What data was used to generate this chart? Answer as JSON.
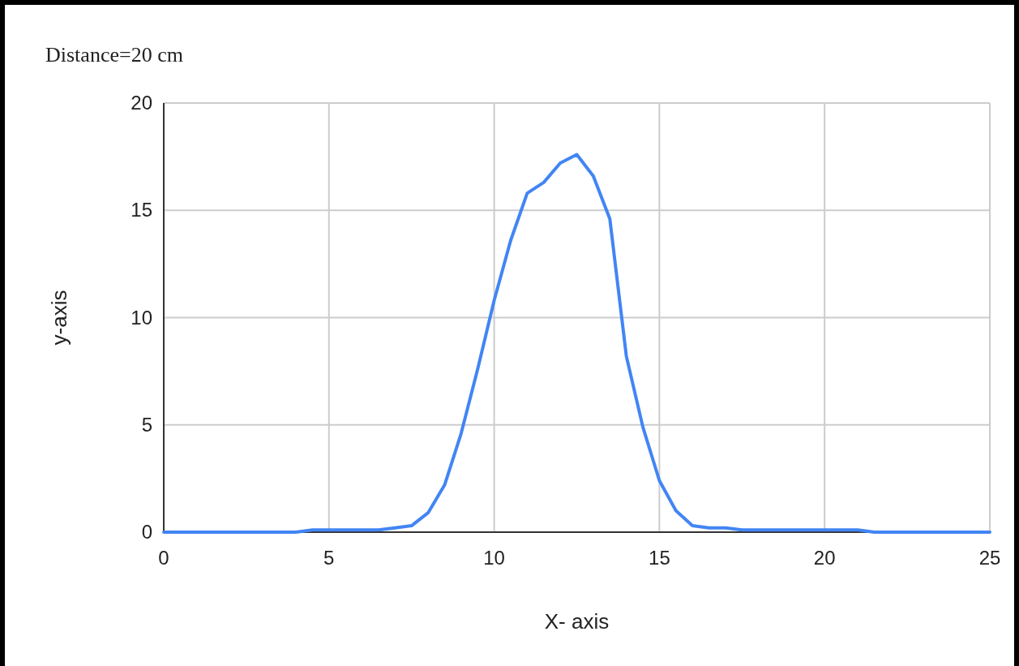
{
  "chart_data": {
    "type": "line",
    "title": "Distance=20 cm",
    "xlabel": "X- axis",
    "ylabel": "y-axis",
    "xlim": [
      0,
      25
    ],
    "xticks": [
      0,
      5,
      10,
      15,
      20,
      25
    ],
    "ylim": [
      0,
      20
    ],
    "yticks": [
      0,
      5,
      10,
      15,
      20
    ],
    "grid": true,
    "series": [
      {
        "color": "#4285f4",
        "x": [
          0,
          0.5,
          1,
          1.5,
          2,
          2.5,
          3,
          3.5,
          4,
          4.5,
          5,
          5.5,
          6,
          6.5,
          7,
          7.5,
          8,
          8.5,
          9,
          9.5,
          10,
          10.5,
          11,
          11.5,
          12,
          12.5,
          13,
          13.5,
          14,
          14.5,
          15,
          15.5,
          16,
          16.5,
          17,
          17.5,
          18,
          18.5,
          19,
          19.5,
          20,
          20.5,
          21,
          21.5,
          22,
          22.5,
          23,
          23.5,
          24,
          24.5,
          25
        ],
        "values": [
          0,
          0,
          0,
          0,
          0,
          0,
          0,
          0,
          0,
          0.1,
          0.1,
          0.1,
          0.1,
          0.1,
          0.2,
          0.3,
          0.9,
          2.2,
          4.6,
          7.6,
          10.8,
          13.6,
          15.8,
          16.3,
          17.2,
          17.6,
          16.6,
          14.6,
          8.2,
          4.9,
          2.4,
          1.0,
          0.3,
          0.2,
          0.2,
          0.1,
          0.1,
          0.1,
          0.1,
          0.1,
          0.1,
          0.1,
          0.1,
          0,
          0,
          0,
          0,
          0,
          0,
          0,
          0
        ]
      }
    ]
  }
}
